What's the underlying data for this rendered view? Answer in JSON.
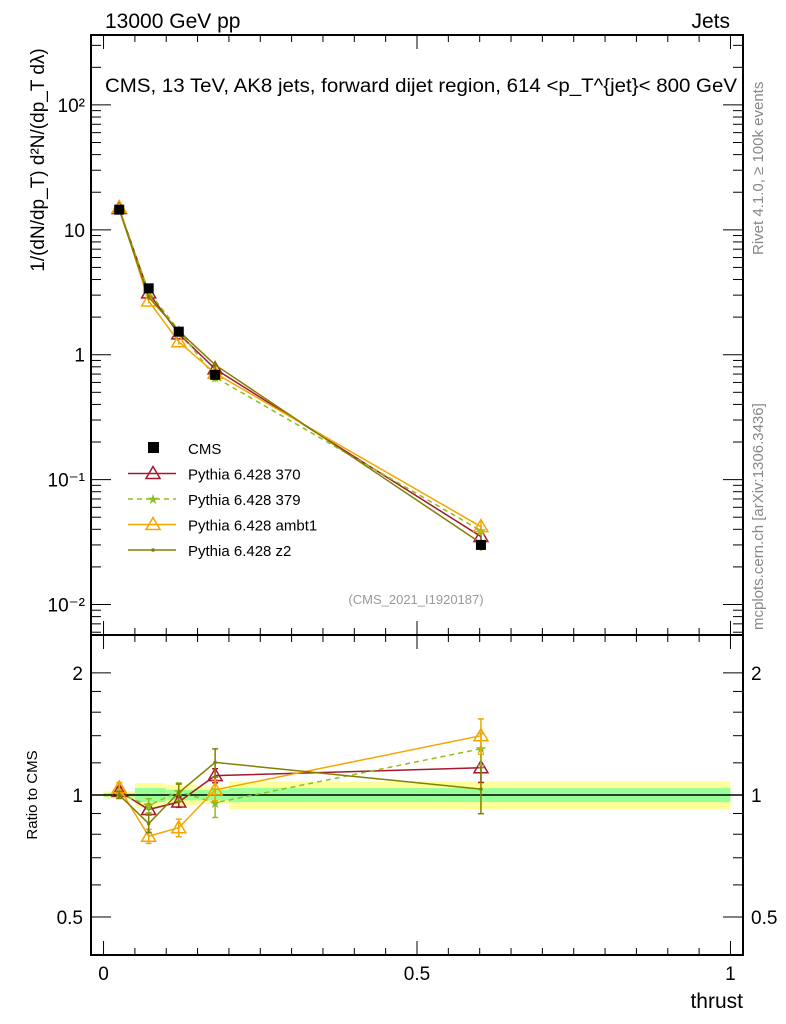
{
  "header": {
    "left": "13000 GeV pp",
    "right": "Jets"
  },
  "side_texts": {
    "rivet": "Rivet 4.1.0, ≥ 100k events",
    "mcplots": "mcplots.cern.ch [arXiv:1306.3436]"
  },
  "chart_data": {
    "type": "line",
    "title": "CMS, 13 TeV, AK8 jets, forward dijet region, 614 <p_T^{jet}< 800 GeV",
    "watermark": "(CMS_2021_I1920187)",
    "xlabel": "thrust",
    "ylabel": "1/(dN/dp_T) d²N/(dp_T dλ)",
    "ratio_ylabel": "Ratio to CMS",
    "xlim": [
      -0.02,
      1.02
    ],
    "ylim": [
      0.0057,
      363
    ],
    "yscale": "log",
    "ratio_ylim": [
      0.403,
      2.48
    ],
    "ratio_yscale": "log",
    "x_ticks": [
      {
        "v": 0,
        "label": "0"
      },
      {
        "v": 0.5,
        "label": "0.5"
      },
      {
        "v": 1,
        "label": "1"
      }
    ],
    "y_ticks": [
      {
        "v": 0.01,
        "label": "10⁻²"
      },
      {
        "v": 0.1,
        "label": "10⁻¹"
      },
      {
        "v": 1,
        "label": "1"
      },
      {
        "v": 10,
        "label": "10"
      },
      {
        "v": 100,
        "label": "10²"
      }
    ],
    "ratio_ticks": [
      {
        "v": 0.5,
        "label": "0.5"
      },
      {
        "v": 1,
        "label": "1"
      },
      {
        "v": 2,
        "label": "2"
      }
    ],
    "bin_edges": [
      0,
      0.05,
      0.1,
      0.15,
      0.2,
      1.0
    ],
    "x": [
      0.025,
      0.072,
      0.12,
      0.178,
      0.602
    ],
    "data": {
      "name": "CMS",
      "color": "#000000",
      "values": [
        14.5,
        3.4,
        1.53,
        0.69,
        0.03
      ],
      "stat_rel": [
        0.01,
        0.04,
        0.03,
        0.03,
        0.04
      ],
      "total_rel": [
        0.02,
        0.07,
        0.06,
        0.05,
        0.08
      ]
    },
    "band_colors": {
      "stat": "#99ff99",
      "total": "#ffff99"
    },
    "series": [
      {
        "name": "Pythia 6.428 370",
        "color": "#a3192f",
        "marker": "triangle",
        "dashed": false,
        "values": [
          14.8,
          3.13,
          1.47,
          0.77,
          0.035
        ],
        "rel_err": [
          0.02,
          0.03,
          0.03,
          0.04,
          0.08
        ]
      },
      {
        "name": "Pythia 6.428 379",
        "color": "#8fbf1f",
        "marker": "star",
        "dashed": true,
        "values": [
          14.6,
          3.2,
          1.56,
          0.66,
          0.039
        ],
        "rel_err": [
          0.02,
          0.04,
          0.05,
          0.08,
          0.09
        ]
      },
      {
        "name": "Pythia 6.428 ambt1",
        "color": "#f5a500",
        "marker": "triangle",
        "dashed": false,
        "values": [
          15.1,
          2.69,
          1.27,
          0.71,
          0.042
        ],
        "rel_err": [
          0.03,
          0.04,
          0.05,
          0.06,
          0.1
        ]
      },
      {
        "name": "Pythia 6.428 z2",
        "color": "#808000",
        "marker": "dot",
        "dashed": false,
        "values": [
          14.5,
          2.89,
          1.55,
          0.83,
          0.031
        ],
        "rel_err": [
          0.02,
          0.05,
          0.05,
          0.08,
          0.13
        ]
      }
    ]
  }
}
